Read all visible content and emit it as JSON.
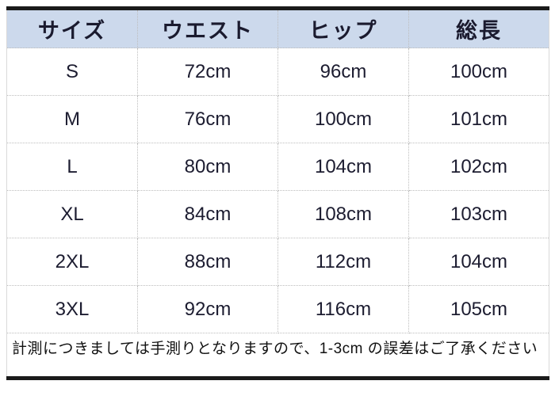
{
  "chart_data": {
    "type": "table",
    "columns": [
      "サイズ",
      "ウエスト",
      "ヒップ",
      "総長"
    ],
    "rows": [
      [
        "S",
        "72cm",
        "96cm",
        "100cm"
      ],
      [
        "M",
        "76cm",
        "100cm",
        "101cm"
      ],
      [
        "L",
        "80cm",
        "104cm",
        "102cm"
      ],
      [
        "XL",
        "84cm",
        "108cm",
        "103cm"
      ],
      [
        "2XL",
        "88cm",
        "112cm",
        "104cm"
      ],
      [
        "3XL",
        "92cm",
        "116cm",
        "105cm"
      ]
    ],
    "note": "計測につきましては手測りとなりますので、1-3cm の誤差はご了承ください",
    "layout_hints": {
      "header_background": "#ccd9ec",
      "outer_border": "thick black top and bottom",
      "inner_border": "light gray dotted grid"
    }
  },
  "table": {
    "headers": {
      "size": "サイズ",
      "waist": "ウエスト",
      "hip": "ヒップ",
      "length": "総長"
    },
    "rows": [
      {
        "size": "S",
        "waist": "72cm",
        "hip": "96cm",
        "length": "100cm"
      },
      {
        "size": "M",
        "waist": "76cm",
        "hip": "100cm",
        "length": "101cm"
      },
      {
        "size": "L",
        "waist": "80cm",
        "hip": "104cm",
        "length": "102cm"
      },
      {
        "size": "XL",
        "waist": "84cm",
        "hip": "108cm",
        "length": "103cm"
      },
      {
        "size": "2XL",
        "waist": "88cm",
        "hip": "112cm",
        "length": "104cm"
      },
      {
        "size": "3XL",
        "waist": "92cm",
        "hip": "116cm",
        "length": "105cm"
      }
    ],
    "note": "計測につきましては手測りとなりますので、1-3cm の誤差はご了承ください"
  },
  "colors": {
    "header_bg": "#ccd9ec",
    "header_text": "#1a1a2e",
    "cell_text": "#1c1c30",
    "note_text": "#111111",
    "border_dark": "#1a1a1a",
    "border_dotted": "#bdbdbd"
  }
}
